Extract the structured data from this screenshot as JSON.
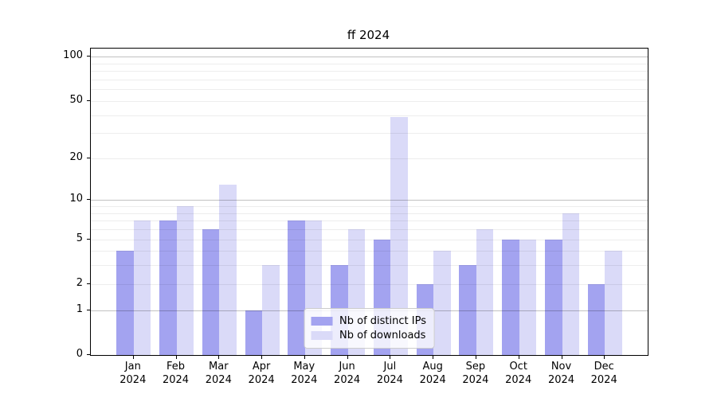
{
  "chart_data": {
    "type": "bar",
    "title": "ff 2024",
    "categories": [
      "Jan 2024",
      "Feb 2024",
      "Mar 2024",
      "Apr 2024",
      "May 2024",
      "Jun 2024",
      "Jul 2024",
      "Aug 2024",
      "Sep 2024",
      "Oct 2024",
      "Nov 2024",
      "Dec 2024"
    ],
    "series": [
      {
        "name": "Nb of distinct IPs",
        "color": "#a3a3f0",
        "values": [
          4,
          7,
          6,
          1,
          7,
          3,
          5,
          2,
          3,
          5,
          5,
          2
        ]
      },
      {
        "name": "Nb of downloads",
        "color": "#dadaf8",
        "values": [
          7,
          9,
          13,
          3,
          7,
          6,
          39,
          4,
          6,
          5,
          8,
          4
        ]
      }
    ],
    "xlabel": "",
    "ylabel": "",
    "y_scale": "log1p",
    "ylim": [
      0,
      114
    ],
    "y_ticks": [
      0,
      1,
      2,
      5,
      10,
      20,
      50,
      100
    ],
    "grid": {
      "major": [
        1,
        10,
        100
      ],
      "minor": [
        2,
        3,
        4,
        5,
        6,
        7,
        8,
        9,
        20,
        30,
        40,
        50,
        60,
        70,
        80,
        90
      ],
      "grid_above_bars": true
    },
    "legend_position": "lower center"
  },
  "colors": {
    "axis": "#000000",
    "background": "#ffffff",
    "major_grid": "rgba(0,0,0,0.24)",
    "minor_grid": "rgba(0,0,0,0.07)"
  }
}
